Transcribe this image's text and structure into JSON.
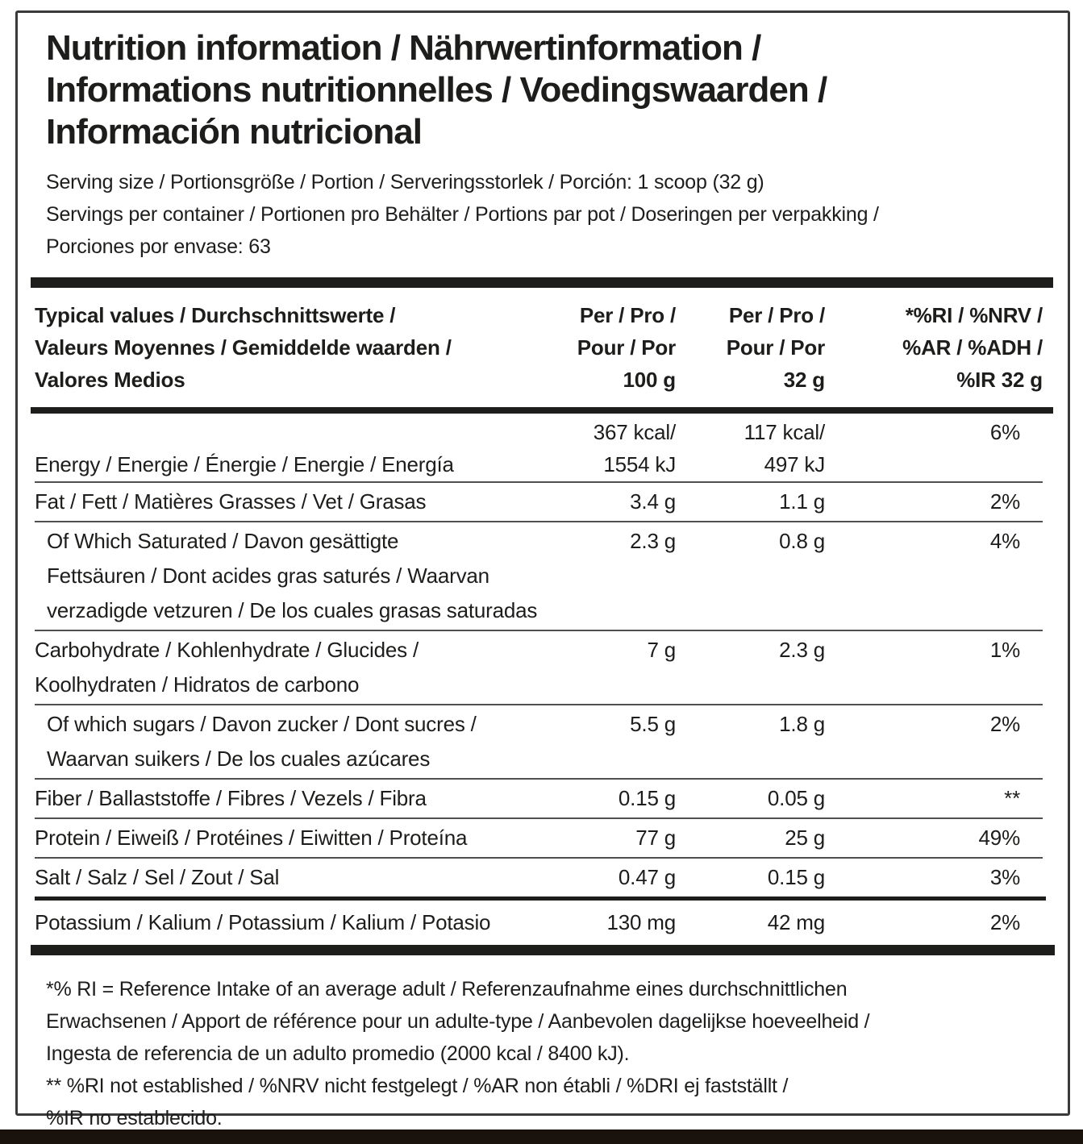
{
  "colors": {
    "text": "#1d1d1b",
    "bar": "#1d1d1b",
    "thin_rule": "#4f4f4f",
    "border": "#3a3a3a",
    "bottom_strip": "#1a120c"
  },
  "title_lines": [
    "Nutrition information / Nährwertinformation /",
    "Informations nutritionnelles / Voedingswaarden /",
    "Información nutricional"
  ],
  "serving_lines": [
    "Serving size / Portionsgröße / Portion / Serveringsstorlek / Porción: 1 scoop (32 g)",
    "Servings per container / Portionen pro Behälter / Portions par pot / Doseringen per verpakking /",
    "Porciones por envase: 63"
  ],
  "table": {
    "header": {
      "col1": [
        "Typical values / Durchschnittswerte /",
        "Valeurs Moyennes / Gemiddelde waarden /",
        "Valores Medios"
      ],
      "col2": [
        "Per / Pro /",
        "Pour / Por",
        "100 g"
      ],
      "col3": [
        "Per / Pro /",
        "Pour / Por",
        "32 g"
      ],
      "col4": [
        "*%RI / %NRV /",
        "%AR / %ADH /",
        "%IR 32 g"
      ]
    },
    "energy": {
      "label": "Energy / Energie / Énergie / Energie / Energía",
      "per100_kcal": "367 kcal/",
      "per100_kj": "1554 kJ",
      "per32_kcal": "117 kcal/",
      "per32_kj": "497 kJ",
      "ri": "6%"
    },
    "rows": [
      {
        "lines": [
          "Fat / Fett / Matières Grasses / Vet / Grasas"
        ],
        "per100": "3.4 g",
        "per32": "1.1 g",
        "ri": "2%"
      },
      {
        "lines": [
          "Of Which Saturated / Davon gesättigte",
          "Fettsäuren / Dont acides gras saturés / Waarvan",
          "verzadigde vetzuren / De los cuales grasas saturadas"
        ],
        "per100": "2.3 g",
        "per32": "0.8 g",
        "ri": "4%"
      },
      {
        "lines": [
          "Carbohydrate / Kohlenhydrate / Glucides /",
          "Koolhydraten / Hidratos de carbono"
        ],
        "per100": "7 g",
        "per32": "2.3 g",
        "ri": "1%"
      },
      {
        "lines": [
          "Of which sugars / Davon zucker / Dont sucres /",
          "Waarvan suikers / De los cuales azúcares"
        ],
        "per100": "5.5 g",
        "per32": "1.8 g",
        "ri": "2%"
      },
      {
        "lines": [
          "Fiber / Ballaststoffe / Fibres / Vezels / Fibra"
        ],
        "per100": "0.15 g",
        "per32": "0.05 g",
        "ri": "**"
      },
      {
        "lines": [
          "Protein / Eiweiß / Protéines / Eiwitten / Proteína"
        ],
        "per100": "77 g",
        "per32": "25 g",
        "ri": "49%"
      },
      {
        "lines": [
          "Salt / Salz / Sel / Zout / Sal"
        ],
        "per100": "0.47 g",
        "per32": "0.15 g",
        "ri": "3%"
      }
    ],
    "potassium": {
      "label": "Potassium / Kalium / Potassium / Kalium / Potasio",
      "per100": "130 mg",
      "per32": "42 mg",
      "ri": "2%"
    }
  },
  "footnote_lines": [
    "*% RI = Reference Intake of an average adult / Referenzaufnahme eines durchschnittlichen",
    "Erwachsenen / Apport de référence pour un adulte-type / Aanbevolen dagelijkse hoeveelheid /",
    "Ingesta de referencia de un adulto promedio (2000 kcal / 8400 kJ).",
    "** %RI not established / %NRV nicht festgelegt / %AR non établi / %DRI ej fastställt /",
    "%IR no establecido."
  ]
}
